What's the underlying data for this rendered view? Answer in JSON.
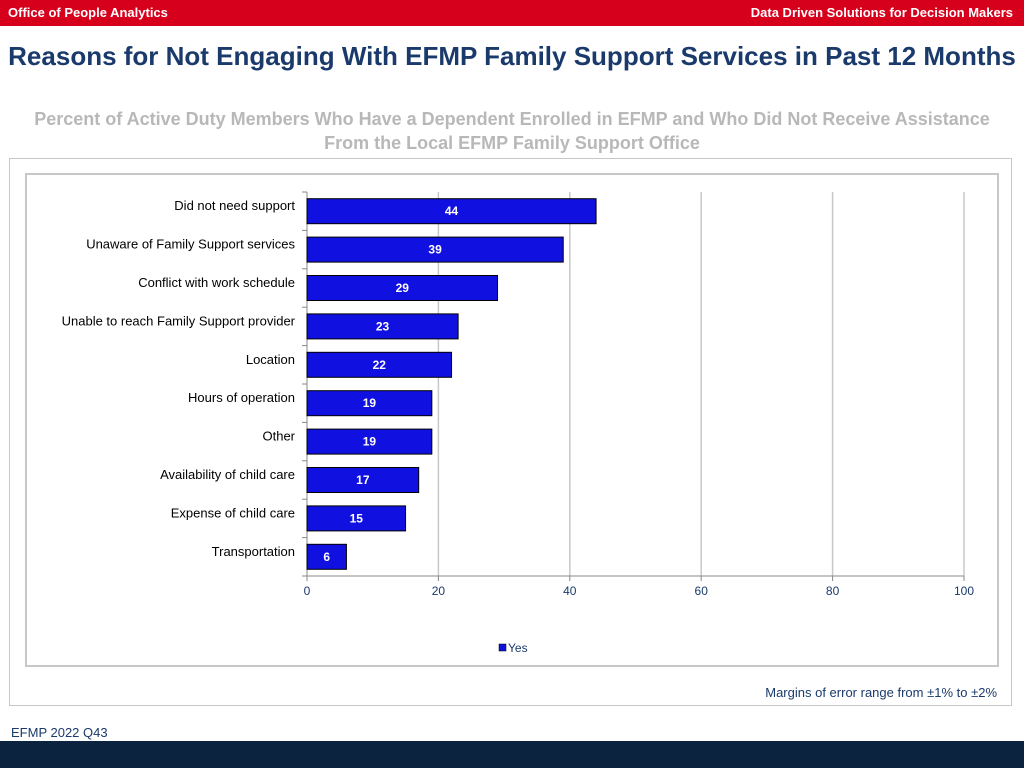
{
  "header": {
    "left_text": "Office of People Analytics",
    "right_text": "Data Driven Solutions for Decision Makers"
  },
  "colors": {
    "header_red": "#d6001c",
    "title_navy": "#1a3a6b",
    "subtitle_gray": "#b8b8b8",
    "bar_blue": "#1010e0",
    "footer_navy": "#0c2340"
  },
  "footer": {
    "margin_note": "Margins of error range from ±1% to ±2%",
    "source": "EFMP 2022 Q43"
  },
  "chart_data": {
    "type": "bar",
    "orientation": "horizontal",
    "title": "Reasons for Not Engaging With EFMP Family Support Services in Past 12 Months",
    "subtitle": "Percent of Active Duty Members Who Have a Dependent Enrolled in EFMP and Who Did Not Receive Assistance From the Local EFMP Family Support Office",
    "categories": [
      "Did not need support",
      "Unaware of Family Support services",
      "Conflict with work schedule",
      "Unable to reach Family Support provider",
      "Location",
      "Hours of operation",
      "Other",
      "Availability of child care",
      "Expense of child care",
      "Transportation"
    ],
    "series": [
      {
        "name": "Yes",
        "values": [
          44,
          39,
          29,
          23,
          22,
          19,
          19,
          17,
          15,
          6
        ]
      }
    ],
    "xlim": [
      0,
      100
    ],
    "xticks": [
      0,
      20,
      40,
      60,
      80,
      100
    ],
    "xlabel": "",
    "ylabel": "",
    "grid": true,
    "legend": "bottom-center"
  }
}
